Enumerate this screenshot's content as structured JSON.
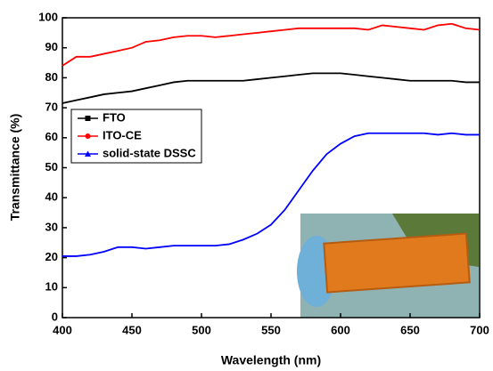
{
  "chart_data": {
    "type": "line",
    "xlabel": "Wavelength (nm)",
    "ylabel": "Transmittance (%)",
    "x": [
      400,
      410,
      420,
      430,
      440,
      450,
      460,
      470,
      480,
      490,
      500,
      510,
      520,
      530,
      540,
      550,
      560,
      570,
      580,
      590,
      600,
      610,
      620,
      630,
      640,
      650,
      660,
      670,
      680,
      690,
      700
    ],
    "series": [
      {
        "name": "FTO",
        "color": "#000000",
        "marker": "square",
        "values": [
          71.5,
          72.5,
          73.5,
          74.5,
          75,
          75.5,
          76.5,
          77.5,
          78.5,
          79,
          79,
          79,
          79,
          79,
          79.5,
          80,
          80.5,
          81,
          81.5,
          81.5,
          81.5,
          81,
          80.5,
          80,
          79.5,
          79,
          79,
          79,
          79,
          78.5,
          78.5
        ]
      },
      {
        "name": "ITO-CE",
        "color": "#ff0000",
        "marker": "circle",
        "values": [
          84,
          87,
          87,
          88,
          89,
          90,
          92,
          92.5,
          93.5,
          94,
          94,
          93.5,
          94,
          94.5,
          95,
          95.5,
          96,
          96.5,
          96.5,
          96.5,
          96.5,
          96.5,
          96,
          97.5,
          97,
          96.5,
          96,
          97.5,
          98,
          96.5,
          96
        ]
      },
      {
        "name": "solid-state DSSC",
        "color": "#0000ff",
        "marker": "triangle",
        "values": [
          20.5,
          20.5,
          21,
          22,
          23.5,
          23.5,
          23,
          23.5,
          24,
          24,
          24,
          24,
          24.5,
          26,
          28,
          31,
          36,
          42.5,
          49,
          54.5,
          58,
          60.5,
          61.5,
          61.5,
          61.5,
          61.5,
          61.5,
          61,
          61.5,
          61,
          61
        ]
      }
    ],
    "xlim": [
      400,
      700
    ],
    "xticks": [
      400,
      450,
      500,
      550,
      600,
      650,
      700
    ],
    "ylim": [
      0,
      100
    ],
    "yticks": [
      0,
      10,
      20,
      30,
      40,
      50,
      60,
      70,
      80,
      90,
      100
    ]
  }
}
